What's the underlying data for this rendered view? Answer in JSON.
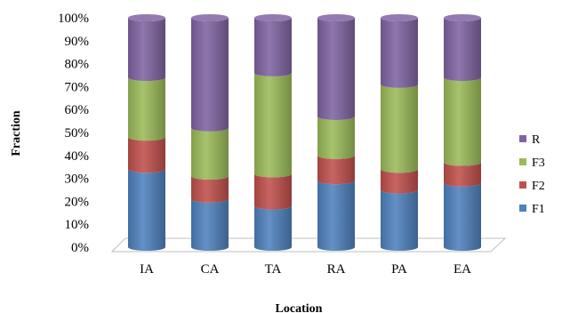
{
  "chart_data": {
    "type": "bar",
    "stacked": true,
    "percent_stacked": true,
    "three_d": true,
    "xlabel": "Location",
    "ylabel": "Fraction",
    "categories": [
      "IA",
      "CA",
      "TA",
      "RA",
      "PA",
      "EA"
    ],
    "y_ticks": [
      "0%",
      "10%",
      "20%",
      "30%",
      "40%",
      "50%",
      "60%",
      "70%",
      "80%",
      "90%",
      "100%"
    ],
    "ylim": [
      0,
      100
    ],
    "legend_position": "right",
    "series": [
      {
        "name": "F1",
        "color": "#4f81bd",
        "values": [
          34,
          21,
          18,
          29,
          25,
          28
        ]
      },
      {
        "name": "F2",
        "color": "#c0504d",
        "values": [
          14,
          10,
          14,
          11,
          9,
          9
        ]
      },
      {
        "name": "F3",
        "color": "#9bbb59",
        "values": [
          26,
          21,
          44,
          17,
          37,
          37
        ]
      },
      {
        "name": "R",
        "color": "#8064a2",
        "values": [
          26,
          48,
          24,
          43,
          29,
          26
        ]
      }
    ]
  }
}
